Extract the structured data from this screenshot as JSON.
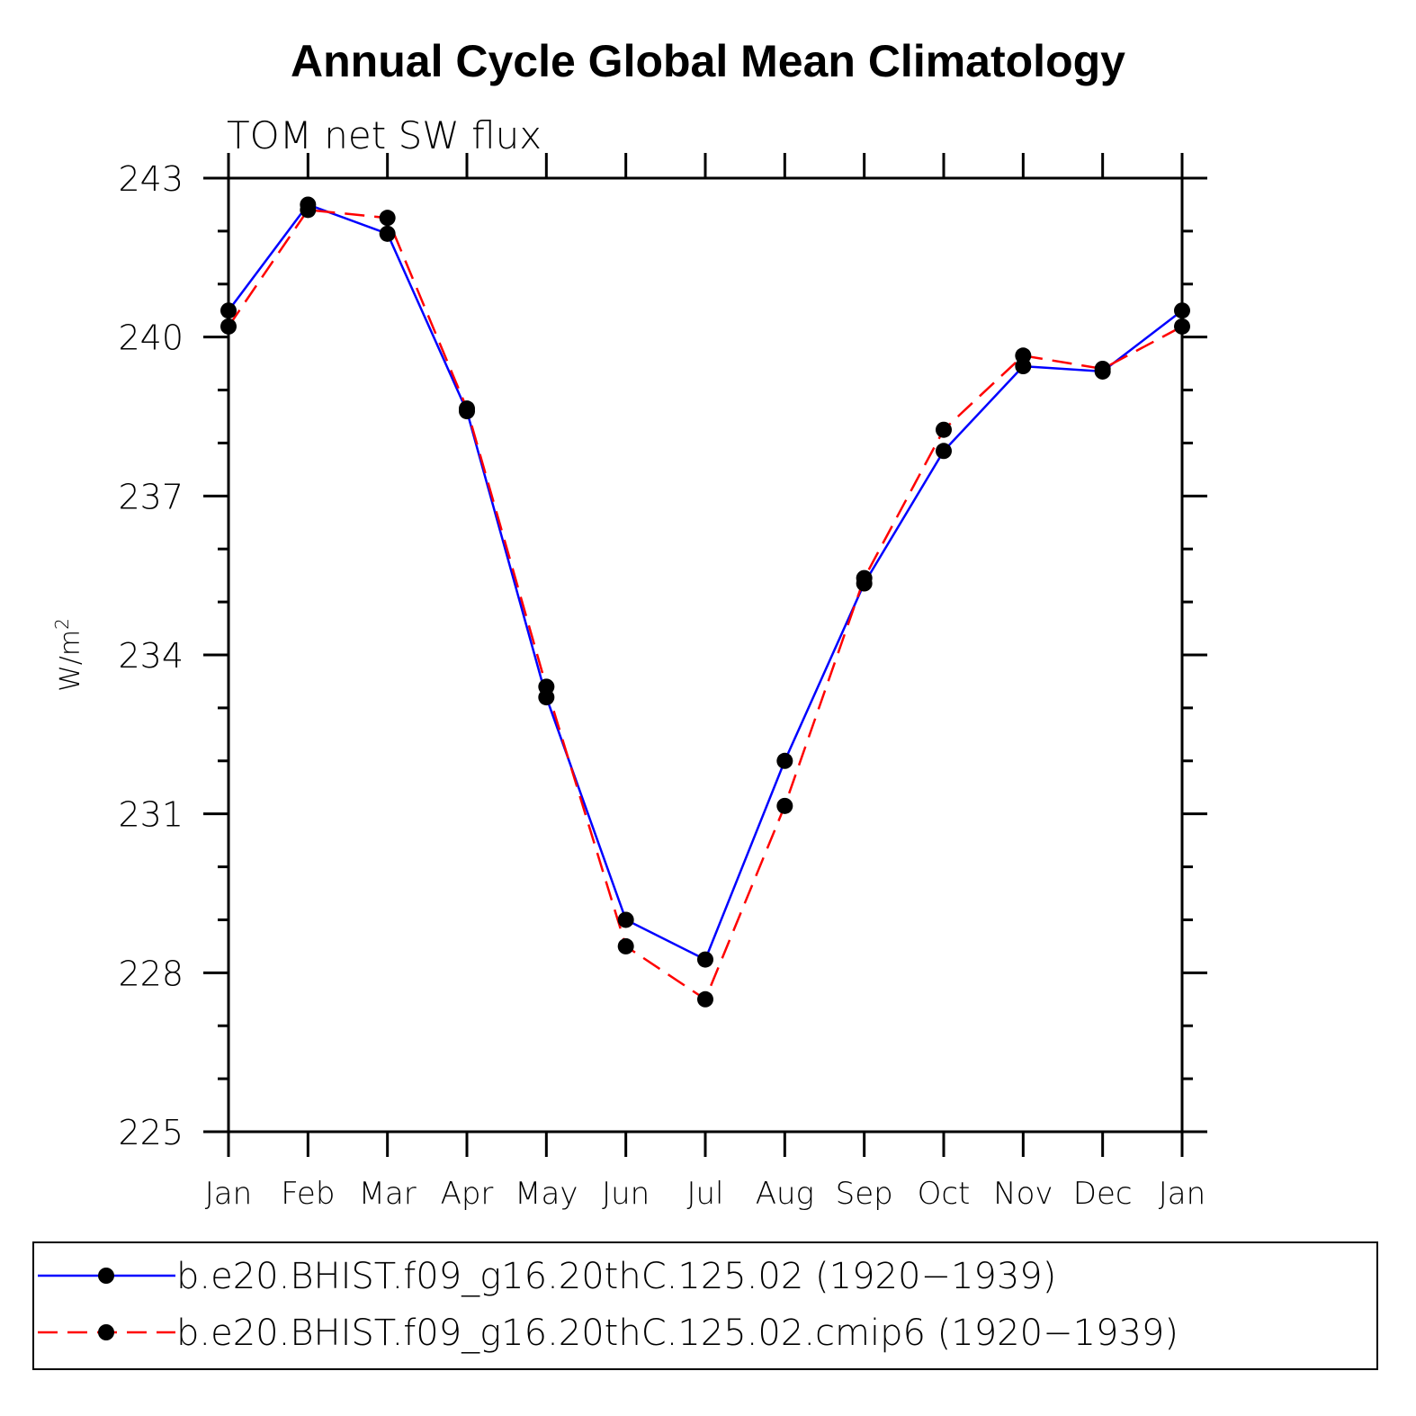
{
  "chart_data": {
    "type": "line",
    "title": "Annual Cycle Global Mean Climatology",
    "subtitle": "TOM net SW flux",
    "ylabel": "W/m",
    "ylabel_sup": "2",
    "categories": [
      "Jan",
      "Feb",
      "Mar",
      "Apr",
      "May",
      "Jun",
      "Jul",
      "Aug",
      "Sep",
      "Oct",
      "Nov",
      "Dec",
      "Jan"
    ],
    "ylim": [
      225,
      243
    ],
    "yticks": [
      "225",
      "228",
      "231",
      "234",
      "237",
      "240",
      "243"
    ],
    "series": [
      {
        "name": "b.e20.BHIST.f09_g16.20thC.125.02 (1920−1939)",
        "color": "#0000ff",
        "dash": "solid",
        "values": [
          240.5,
          242.5,
          241.95,
          238.6,
          233.2,
          229.0,
          228.25,
          232.0,
          235.35,
          237.85,
          239.45,
          239.35,
          240.5
        ]
      },
      {
        "name": "b.e20.BHIST.f09_g16.20thC.125.02.cmip6 (1920−1939)",
        "color": "#ff0000",
        "dash": "dashed",
        "values": [
          240.2,
          242.4,
          242.25,
          238.65,
          233.4,
          228.5,
          227.5,
          231.15,
          235.45,
          238.25,
          239.65,
          239.4,
          240.2
        ]
      }
    ],
    "legend_placement": "bottom",
    "grid": false
  }
}
